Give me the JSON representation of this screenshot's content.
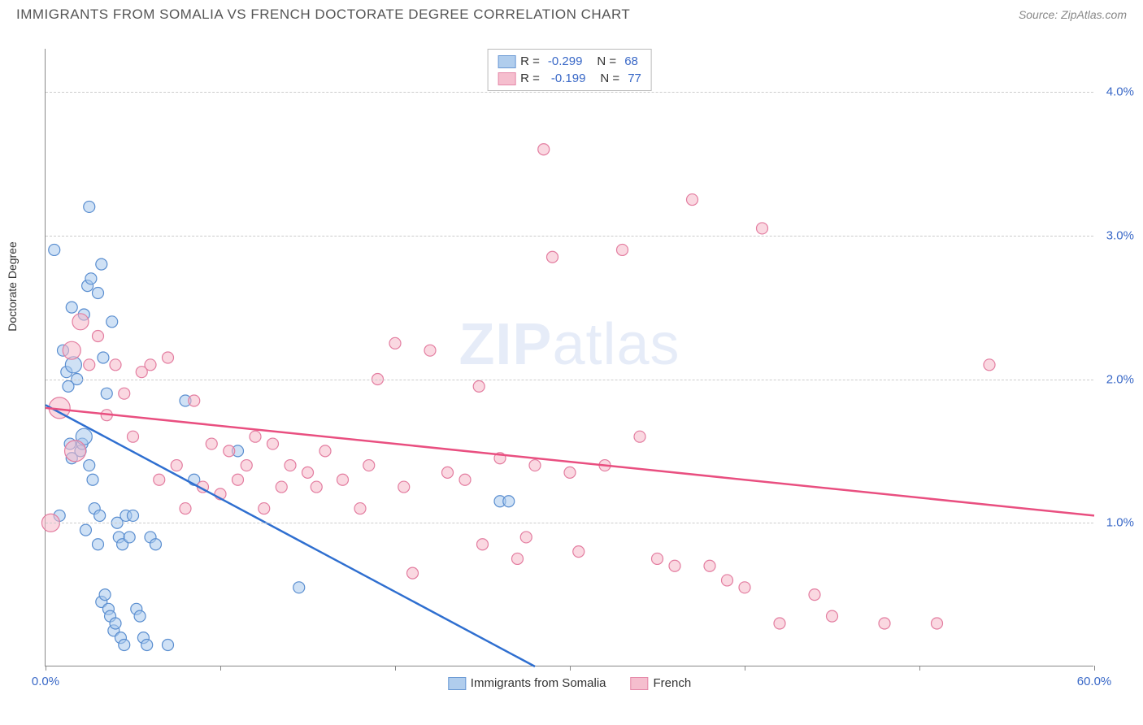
{
  "header": {
    "title": "IMMIGRANTS FROM SOMALIA VS FRENCH DOCTORATE DEGREE CORRELATION CHART",
    "source_label": "Source:",
    "source_value": "ZipAtlas.com"
  },
  "watermark": {
    "part1": "ZIP",
    "part2": "atlas"
  },
  "chart": {
    "type": "scatter",
    "y_axis_label": "Doctorate Degree",
    "xlim": [
      0,
      60
    ],
    "ylim": [
      0,
      4.3
    ],
    "x_ticks": [
      0,
      10,
      20,
      30,
      40,
      50,
      60
    ],
    "x_tick_labels_shown": {
      "0": "0.0%",
      "60": "60.0%"
    },
    "y_gridlines": [
      1,
      2,
      3,
      4
    ],
    "y_tick_labels": {
      "1": "1.0%",
      "2": "2.0%",
      "3": "3.0%",
      "4": "4.0%"
    },
    "background_color": "#ffffff",
    "grid_color": "#cccccc",
    "axis_color": "#888888",
    "tick_label_color": "#3968c7",
    "series": [
      {
        "key": "somalia",
        "label": "Immigrants from Somalia",
        "fill": "#a8c8ec",
        "fill_opacity": 0.55,
        "stroke": "#5a8ed0",
        "trend_color": "#2f6fd0",
        "trend_width": 2.5,
        "R": "-0.299",
        "N": "68",
        "trend_line": {
          "x1": 0,
          "y1": 1.82,
          "x2": 28,
          "y2": 0
        },
        "points": [
          {
            "x": 0.5,
            "y": 2.9,
            "r": 7
          },
          {
            "x": 0.8,
            "y": 1.05,
            "r": 7
          },
          {
            "x": 1.0,
            "y": 2.2,
            "r": 7
          },
          {
            "x": 1.2,
            "y": 2.05,
            "r": 7
          },
          {
            "x": 1.3,
            "y": 1.95,
            "r": 7
          },
          {
            "x": 1.4,
            "y": 1.55,
            "r": 7
          },
          {
            "x": 1.5,
            "y": 1.45,
            "r": 7
          },
          {
            "x": 1.5,
            "y": 2.5,
            "r": 7
          },
          {
            "x": 1.6,
            "y": 2.1,
            "r": 10
          },
          {
            "x": 1.8,
            "y": 2.0,
            "r": 7
          },
          {
            "x": 2.0,
            "y": 1.5,
            "r": 7
          },
          {
            "x": 2.1,
            "y": 1.55,
            "r": 7
          },
          {
            "x": 2.2,
            "y": 2.45,
            "r": 7
          },
          {
            "x": 2.2,
            "y": 1.6,
            "r": 10
          },
          {
            "x": 2.3,
            "y": 0.95,
            "r": 7
          },
          {
            "x": 2.4,
            "y": 2.65,
            "r": 7
          },
          {
            "x": 2.5,
            "y": 3.2,
            "r": 7
          },
          {
            "x": 2.5,
            "y": 1.4,
            "r": 7
          },
          {
            "x": 2.6,
            "y": 2.7,
            "r": 7
          },
          {
            "x": 2.7,
            "y": 1.3,
            "r": 7
          },
          {
            "x": 2.8,
            "y": 1.1,
            "r": 7
          },
          {
            "x": 3.0,
            "y": 2.6,
            "r": 7
          },
          {
            "x": 3.0,
            "y": 0.85,
            "r": 7
          },
          {
            "x": 3.1,
            "y": 1.05,
            "r": 7
          },
          {
            "x": 3.2,
            "y": 2.8,
            "r": 7
          },
          {
            "x": 3.2,
            "y": 0.45,
            "r": 7
          },
          {
            "x": 3.3,
            "y": 2.15,
            "r": 7
          },
          {
            "x": 3.4,
            "y": 0.5,
            "r": 7
          },
          {
            "x": 3.5,
            "y": 1.9,
            "r": 7
          },
          {
            "x": 3.6,
            "y": 0.4,
            "r": 7
          },
          {
            "x": 3.7,
            "y": 0.35,
            "r": 7
          },
          {
            "x": 3.8,
            "y": 2.4,
            "r": 7
          },
          {
            "x": 3.9,
            "y": 0.25,
            "r": 7
          },
          {
            "x": 4.0,
            "y": 0.3,
            "r": 7
          },
          {
            "x": 4.1,
            "y": 1.0,
            "r": 7
          },
          {
            "x": 4.2,
            "y": 0.9,
            "r": 7
          },
          {
            "x": 4.3,
            "y": 0.2,
            "r": 7
          },
          {
            "x": 4.4,
            "y": 0.85,
            "r": 7
          },
          {
            "x": 4.5,
            "y": 0.15,
            "r": 7
          },
          {
            "x": 4.6,
            "y": 1.05,
            "r": 7
          },
          {
            "x": 4.8,
            "y": 0.9,
            "r": 7
          },
          {
            "x": 5.0,
            "y": 1.05,
            "r": 7
          },
          {
            "x": 5.2,
            "y": 0.4,
            "r": 7
          },
          {
            "x": 5.4,
            "y": 0.35,
            "r": 7
          },
          {
            "x": 5.6,
            "y": 0.2,
            "r": 7
          },
          {
            "x": 5.8,
            "y": 0.15,
            "r": 7
          },
          {
            "x": 6.0,
            "y": 0.9,
            "r": 7
          },
          {
            "x": 6.3,
            "y": 0.85,
            "r": 7
          },
          {
            "x": 7.0,
            "y": 0.15,
            "r": 7
          },
          {
            "x": 8.0,
            "y": 1.85,
            "r": 7
          },
          {
            "x": 8.5,
            "y": 1.3,
            "r": 7
          },
          {
            "x": 11.0,
            "y": 1.5,
            "r": 7
          },
          {
            "x": 14.5,
            "y": 0.55,
            "r": 7
          },
          {
            "x": 26.0,
            "y": 1.15,
            "r": 7
          },
          {
            "x": 26.5,
            "y": 1.15,
            "r": 7
          }
        ]
      },
      {
        "key": "french",
        "label": "French",
        "fill": "#f5b8c9",
        "fill_opacity": 0.55,
        "stroke": "#e37da0",
        "trend_color": "#e94f80",
        "trend_width": 2.5,
        "R": "-0.199",
        "N": "77",
        "trend_line": {
          "x1": 0,
          "y1": 1.8,
          "x2": 60,
          "y2": 1.05
        },
        "points": [
          {
            "x": 0.3,
            "y": 1.0,
            "r": 11
          },
          {
            "x": 0.8,
            "y": 1.8,
            "r": 13
          },
          {
            "x": 1.5,
            "y": 2.2,
            "r": 11
          },
          {
            "x": 1.7,
            "y": 1.5,
            "r": 13
          },
          {
            "x": 2.0,
            "y": 2.4,
            "r": 10
          },
          {
            "x": 2.5,
            "y": 2.1,
            "r": 7
          },
          {
            "x": 3.0,
            "y": 2.3,
            "r": 7
          },
          {
            "x": 3.5,
            "y": 1.75,
            "r": 7
          },
          {
            "x": 4.0,
            "y": 2.1,
            "r": 7
          },
          {
            "x": 4.5,
            "y": 1.9,
            "r": 7
          },
          {
            "x": 5.0,
            "y": 1.6,
            "r": 7
          },
          {
            "x": 5.5,
            "y": 2.05,
            "r": 7
          },
          {
            "x": 6.0,
            "y": 2.1,
            "r": 7
          },
          {
            "x": 6.5,
            "y": 1.3,
            "r": 7
          },
          {
            "x": 7.0,
            "y": 2.15,
            "r": 7
          },
          {
            "x": 7.5,
            "y": 1.4,
            "r": 7
          },
          {
            "x": 8.0,
            "y": 1.1,
            "r": 7
          },
          {
            "x": 8.5,
            "y": 1.85,
            "r": 7
          },
          {
            "x": 9.0,
            "y": 1.25,
            "r": 7
          },
          {
            "x": 9.5,
            "y": 1.55,
            "r": 7
          },
          {
            "x": 10.0,
            "y": 1.2,
            "r": 7
          },
          {
            "x": 10.5,
            "y": 1.5,
            "r": 7
          },
          {
            "x": 11.0,
            "y": 1.3,
            "r": 7
          },
          {
            "x": 11.5,
            "y": 1.4,
            "r": 7
          },
          {
            "x": 12.0,
            "y": 1.6,
            "r": 7
          },
          {
            "x": 12.5,
            "y": 1.1,
            "r": 7
          },
          {
            "x": 13.0,
            "y": 1.55,
            "r": 7
          },
          {
            "x": 13.5,
            "y": 1.25,
            "r": 7
          },
          {
            "x": 14.0,
            "y": 1.4,
            "r": 7
          },
          {
            "x": 15.0,
            "y": 1.35,
            "r": 7
          },
          {
            "x": 15.5,
            "y": 1.25,
            "r": 7
          },
          {
            "x": 16.0,
            "y": 1.5,
            "r": 7
          },
          {
            "x": 17.0,
            "y": 1.3,
            "r": 7
          },
          {
            "x": 18.0,
            "y": 1.1,
            "r": 7
          },
          {
            "x": 18.5,
            "y": 1.4,
            "r": 7
          },
          {
            "x": 19.0,
            "y": 2.0,
            "r": 7
          },
          {
            "x": 20.0,
            "y": 2.25,
            "r": 7
          },
          {
            "x": 20.5,
            "y": 1.25,
            "r": 7
          },
          {
            "x": 21.0,
            "y": 0.65,
            "r": 7
          },
          {
            "x": 22.0,
            "y": 2.2,
            "r": 7
          },
          {
            "x": 23.0,
            "y": 1.35,
            "r": 7
          },
          {
            "x": 24.0,
            "y": 1.3,
            "r": 7
          },
          {
            "x": 24.8,
            "y": 1.95,
            "r": 7
          },
          {
            "x": 25.0,
            "y": 0.85,
            "r": 7
          },
          {
            "x": 26.0,
            "y": 1.45,
            "r": 7
          },
          {
            "x": 27.0,
            "y": 0.75,
            "r": 7
          },
          {
            "x": 27.5,
            "y": 0.9,
            "r": 7
          },
          {
            "x": 28.0,
            "y": 1.4,
            "r": 7
          },
          {
            "x": 28.5,
            "y": 3.6,
            "r": 7
          },
          {
            "x": 29.0,
            "y": 2.85,
            "r": 7
          },
          {
            "x": 30.0,
            "y": 1.35,
            "r": 7
          },
          {
            "x": 30.5,
            "y": 0.8,
            "r": 7
          },
          {
            "x": 32.0,
            "y": 1.4,
            "r": 7
          },
          {
            "x": 33.0,
            "y": 2.9,
            "r": 7
          },
          {
            "x": 34.0,
            "y": 1.6,
            "r": 7
          },
          {
            "x": 35.0,
            "y": 0.75,
            "r": 7
          },
          {
            "x": 36.0,
            "y": 0.7,
            "r": 7
          },
          {
            "x": 37.0,
            "y": 3.25,
            "r": 7
          },
          {
            "x": 38.0,
            "y": 0.7,
            "r": 7
          },
          {
            "x": 39.0,
            "y": 0.6,
            "r": 7
          },
          {
            "x": 40.0,
            "y": 0.55,
            "r": 7
          },
          {
            "x": 41.0,
            "y": 3.05,
            "r": 7
          },
          {
            "x": 42.0,
            "y": 0.3,
            "r": 7
          },
          {
            "x": 44.0,
            "y": 0.5,
            "r": 7
          },
          {
            "x": 45.0,
            "y": 0.35,
            "r": 7
          },
          {
            "x": 48.0,
            "y": 0.3,
            "r": 7
          },
          {
            "x": 51.0,
            "y": 0.3,
            "r": 7
          },
          {
            "x": 54.0,
            "y": 2.1,
            "r": 7
          }
        ]
      }
    ]
  }
}
